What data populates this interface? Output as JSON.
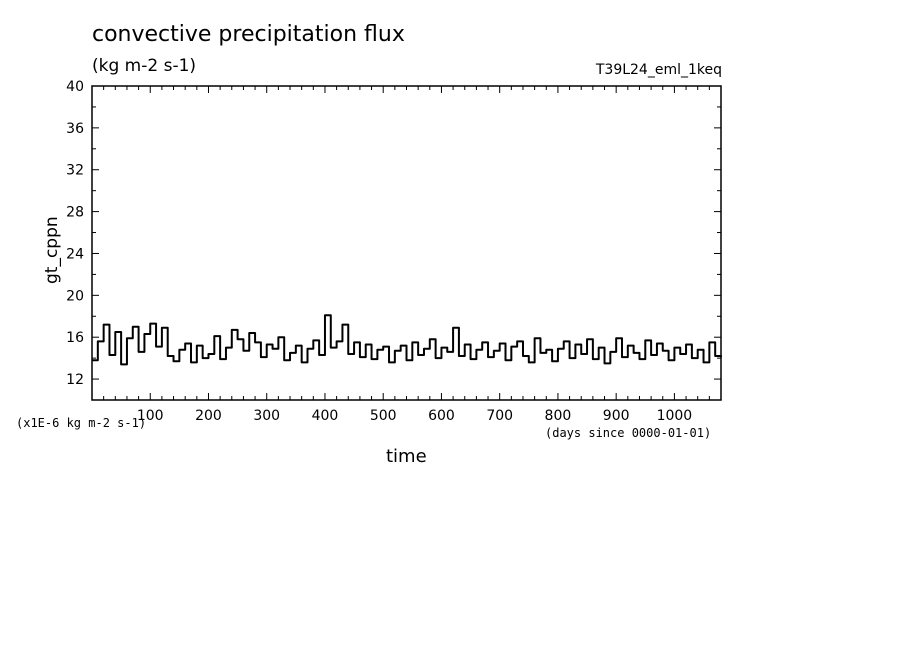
{
  "chart_data": {
    "type": "line",
    "title": "convective precipitation flux",
    "subtitle": "(kg m-2 s-1)",
    "run_label": "T39L24_eml_1keq",
    "ylabel": "gt_cppn",
    "xlabel": "time",
    "y_scale_note": "(x1E-6 kg m-2 s-1)",
    "x_units": "(days since 0000-01-01)",
    "xlim": [
      0,
      1080
    ],
    "ylim": [
      10,
      40
    ],
    "x_ticks": [
      100,
      200,
      300,
      400,
      500,
      600,
      700,
      800,
      900,
      1000
    ],
    "y_ticks": [
      12,
      16,
      20,
      24,
      28,
      32,
      36,
      40
    ],
    "grid": false,
    "series": [
      {
        "x": [
          0,
          10,
          20,
          30,
          40,
          50,
          60,
          70,
          80,
          90,
          100,
          110,
          120,
          130,
          140,
          150,
          160,
          170,
          180,
          190,
          200,
          210,
          220,
          230,
          240,
          250,
          260,
          270,
          280,
          290,
          300,
          310,
          320,
          330,
          340,
          350,
          360,
          370,
          380,
          390,
          400,
          410,
          420,
          430,
          440,
          450,
          460,
          470,
          480,
          490,
          500,
          510,
          520,
          530,
          540,
          550,
          560,
          570,
          580,
          590,
          600,
          610,
          620,
          630,
          640,
          650,
          660,
          670,
          680,
          690,
          700,
          710,
          720,
          730,
          740,
          750,
          760,
          770,
          780,
          790,
          800,
          810,
          820,
          830,
          840,
          850,
          860,
          870,
          880,
          890,
          900,
          910,
          920,
          930,
          940,
          950,
          960,
          970,
          980,
          990,
          1000,
          1010,
          1020,
          1030,
          1040,
          1050,
          1060,
          1070,
          1080
        ],
        "values": [
          13.8,
          15.6,
          17.2,
          14.3,
          16.5,
          13.4,
          15.9,
          17.0,
          14.6,
          16.3,
          17.3,
          15.1,
          16.9,
          14.2,
          13.7,
          14.8,
          15.4,
          13.6,
          15.2,
          14.0,
          14.4,
          16.1,
          13.9,
          15.0,
          16.7,
          15.8,
          14.7,
          16.4,
          15.5,
          14.1,
          15.3,
          14.9,
          16.0,
          13.8,
          14.5,
          15.2,
          13.6,
          14.9,
          15.7,
          14.3,
          18.1,
          15.0,
          15.6,
          17.2,
          14.4,
          15.5,
          14.1,
          15.3,
          13.9,
          14.8,
          15.1,
          13.6,
          14.7,
          15.2,
          13.8,
          15.5,
          14.3,
          14.9,
          15.8,
          14.0,
          15.0,
          14.6,
          16.9,
          14.2,
          15.3,
          13.9,
          14.8,
          15.5,
          14.1,
          14.7,
          15.4,
          13.8,
          15.1,
          15.6,
          14.2,
          13.6,
          15.9,
          14.5,
          14.8,
          13.7,
          14.9,
          15.6,
          14.0,
          15.3,
          14.4,
          15.8,
          13.9,
          15.0,
          13.5,
          14.6,
          15.9,
          14.1,
          15.2,
          14.5,
          13.9,
          15.7,
          14.3,
          15.4,
          14.7,
          13.8,
          15.0,
          14.4,
          15.3,
          14.0,
          14.8,
          13.6,
          15.5,
          14.2,
          14.1
        ]
      }
    ]
  }
}
